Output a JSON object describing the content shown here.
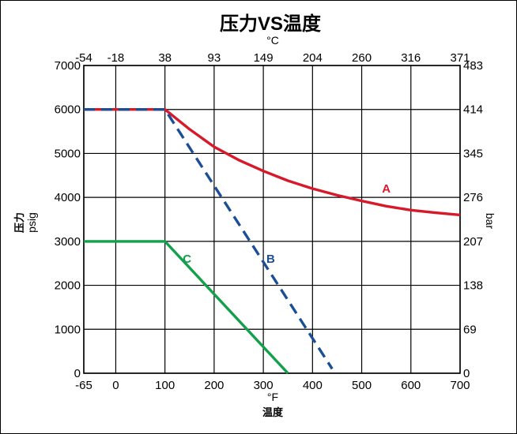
{
  "chart_data": {
    "type": "line",
    "title": "压力VS温度",
    "x_axis_bottom": {
      "unit": "°F",
      "label": "温度",
      "ticks": [
        "-65",
        "0",
        "100",
        "200",
        "300",
        "400",
        "500",
        "600",
        "700"
      ],
      "range": [
        -65,
        700
      ]
    },
    "x_axis_top": {
      "unit": "°C",
      "ticks": [
        "-54",
        "-18",
        "38",
        "93",
        "149",
        "204",
        "260",
        "316",
        "371"
      ]
    },
    "y_axis_left": {
      "label": "压力",
      "unit": "psig",
      "ticks": [
        "0",
        "1000",
        "2000",
        "3000",
        "4000",
        "5000",
        "6000",
        "7000"
      ],
      "range": [
        0,
        7000
      ]
    },
    "y_axis_right": {
      "unit": "bar",
      "ticks": [
        "0",
        "69",
        "138",
        "207",
        "276",
        "345",
        "414",
        "483"
      ]
    },
    "grid": true,
    "series": [
      {
        "name": "A",
        "color": "#d7192a",
        "style": "solid",
        "x": [
          -65,
          100,
          150,
          200,
          250,
          300,
          350,
          400,
          450,
          500,
          550,
          600,
          650,
          700
        ],
        "y": [
          6000,
          6000,
          5550,
          5150,
          4850,
          4600,
          4380,
          4200,
          4050,
          3920,
          3800,
          3710,
          3650,
          3600
        ]
      },
      {
        "name": "B",
        "color": "#1c4e96",
        "style": "dashed",
        "x": [
          -65,
          100,
          440
        ],
        "y": [
          6000,
          6000,
          100
        ]
      },
      {
        "name": "C",
        "color": "#12a04a",
        "style": "solid",
        "x": [
          -65,
          100,
          350
        ],
        "y": [
          3000,
          3000,
          0
        ]
      }
    ],
    "annotations": [
      {
        "text": "A",
        "x": 550,
        "y": 4200,
        "color": "#d7192a"
      },
      {
        "text": "B",
        "x": 315,
        "y": 2600,
        "color": "#1c4e96"
      },
      {
        "text": "C",
        "x": 145,
        "y": 2600,
        "color": "#12a04a"
      }
    ]
  }
}
